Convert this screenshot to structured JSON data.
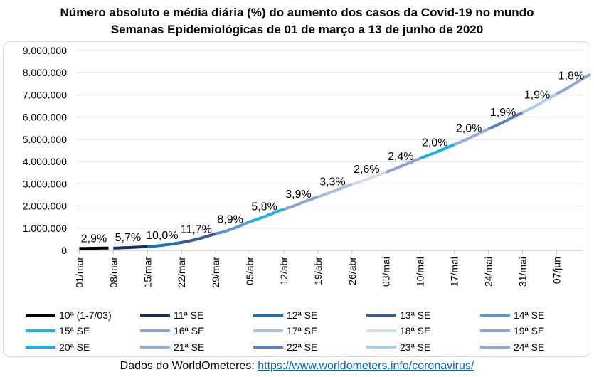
{
  "title_line1": "Número absoluto e média diária (%) do aumento dos casos da Covid-19 no mundo",
  "title_line2": "Semanas Epidemiológicas de 01 de março a 13 de junho de 2020",
  "footer": {
    "prefix": "Dados do WorldOmeteres:",
    "link": "https://www.worldometers.info/coronavirus/"
  },
  "chart_data": {
    "type": "line",
    "ylim": [
      0,
      9000000
    ],
    "y_ticks": [
      "0",
      "1.000.000",
      "2.000.000",
      "3.000.000",
      "4.000.000",
      "5.000.000",
      "6.000.000",
      "7.000.000",
      "8.000.000",
      "9.000.000"
    ],
    "x_ticks": [
      "01/mar",
      "08/mar",
      "15/mar",
      "22/mar",
      "29/mar",
      "05/abr",
      "12/abr",
      "19/abr",
      "26/abr",
      "03/mai",
      "10/mai",
      "17/mai",
      "24/mai",
      "31/mai",
      "07/jun"
    ],
    "series": [
      {
        "name": "10ª (1-7/03)",
        "color": "#000000",
        "start": 0,
        "values": [
          88000,
          91000,
          93000,
          96000,
          99000,
          102000,
          106000
        ]
      },
      {
        "name": "11ª SE",
        "color": "#14305f",
        "start": 7,
        "values": [
          106000,
          110000,
          119000,
          126000,
          135000,
          146000,
          157000,
          168000
        ]
      },
      {
        "name": "12ª SE",
        "color": "#1a6fb5",
        "start": 14,
        "values": [
          168000,
          185000,
          204000,
          228000,
          256000,
          286000,
          320000,
          355000
        ]
      },
      {
        "name": "13ª SE",
        "color": "#3a5b94",
        "start": 21,
        "values": [
          355000,
          396000,
          442000,
          497000,
          552000,
          617000,
          684000,
          750000
        ]
      },
      {
        "name": "14ª SE",
        "color": "#5b96cf",
        "start": 28,
        "values": [
          750000,
          800000,
          862000,
          937000,
          1017000,
          1100000,
          1200000,
          1297000
        ]
      },
      {
        "name": "15ª SE",
        "color": "#21b4e5",
        "start": 35,
        "values": [
          1297000,
          1365000,
          1442000,
          1516000,
          1604000,
          1697000,
          1780000,
          1853000
        ]
      },
      {
        "name": "16ª SE",
        "color": "#8aa4d4",
        "start": 42,
        "values": [
          1853000,
          1929000,
          2000000,
          2083000,
          2178000,
          2258000,
          2332000,
          2406000
        ]
      },
      {
        "name": "17ª SE",
        "color": "#a9bfe2",
        "start": 49,
        "values": [
          2406000,
          2486000,
          2564000,
          2647000,
          2726000,
          2808000,
          2897000,
          2980000
        ]
      },
      {
        "name": "18ª SE",
        "color": "#d3dceb",
        "start": 56,
        "values": [
          2980000,
          3046000,
          3118000,
          3196000,
          3276000,
          3354000,
          3442000,
          3524000
        ]
      },
      {
        "name": "19ª SE",
        "color": "#8ea2d2",
        "start": 63,
        "values": [
          3524000,
          3604000,
          3689000,
          3781000,
          3871000,
          3962000,
          4053000,
          4142000
        ]
      },
      {
        "name": "20ª SE",
        "color": "#12b3e6",
        "start": 70,
        "values": [
          4142000,
          4228000,
          4311000,
          4396000,
          4487000,
          4579000,
          4672000,
          4765000
        ]
      },
      {
        "name": "21ª SE",
        "color": "#95aedb",
        "start": 77,
        "values": [
          4765000,
          4855000,
          4948000,
          5049000,
          5150000,
          5253000,
          5359000,
          5466000
        ]
      },
      {
        "name": "22ª SE",
        "color": "#5d7fc1",
        "start": 84,
        "values": [
          5466000,
          5562000,
          5664000,
          5769000,
          5882000,
          5994000,
          6101000,
          6207000
        ]
      },
      {
        "name": "23ª SE",
        "color": "#a9cdeb",
        "start": 91,
        "values": [
          6207000,
          6314000,
          6424000,
          6542000,
          6668000,
          6795000,
          6914000,
          7037000
        ]
      },
      {
        "name": "24ª SE",
        "color": "#8ea9d6",
        "start": 98,
        "values": [
          7037000,
          7157000,
          7281000,
          7409000,
          7550000,
          7689000,
          7819000,
          7935000
        ]
      }
    ],
    "annotations": [
      {
        "text": "2,9%",
        "x": 3,
        "y": 88000
      },
      {
        "text": "5,7%",
        "x": 10,
        "y": 126000
      },
      {
        "text": "10,0%",
        "x": 17,
        "y": 228000
      },
      {
        "text": "11,7%",
        "x": 24,
        "y": 497000
      },
      {
        "text": "8,9%",
        "x": 31,
        "y": 937000
      },
      {
        "text": "5,8%",
        "x": 38,
        "y": 1516000
      },
      {
        "text": "3,9%",
        "x": 45,
        "y": 2083000
      },
      {
        "text": "3,3%",
        "x": 52,
        "y": 2647000
      },
      {
        "text": "2,6%",
        "x": 59,
        "y": 3196000
      },
      {
        "text": "2,4%",
        "x": 66,
        "y": 3781000
      },
      {
        "text": "2,0%",
        "x": 73,
        "y": 4396000
      },
      {
        "text": "2,0%",
        "x": 80,
        "y": 5049000
      },
      {
        "text": "1,9%",
        "x": 87,
        "y": 5769000
      },
      {
        "text": "1,9%",
        "x": 94,
        "y": 6542000
      },
      {
        "text": "1,8%",
        "x": 101,
        "y": 7409000
      }
    ],
    "grid": "horizontal",
    "legend": "bottom"
  }
}
